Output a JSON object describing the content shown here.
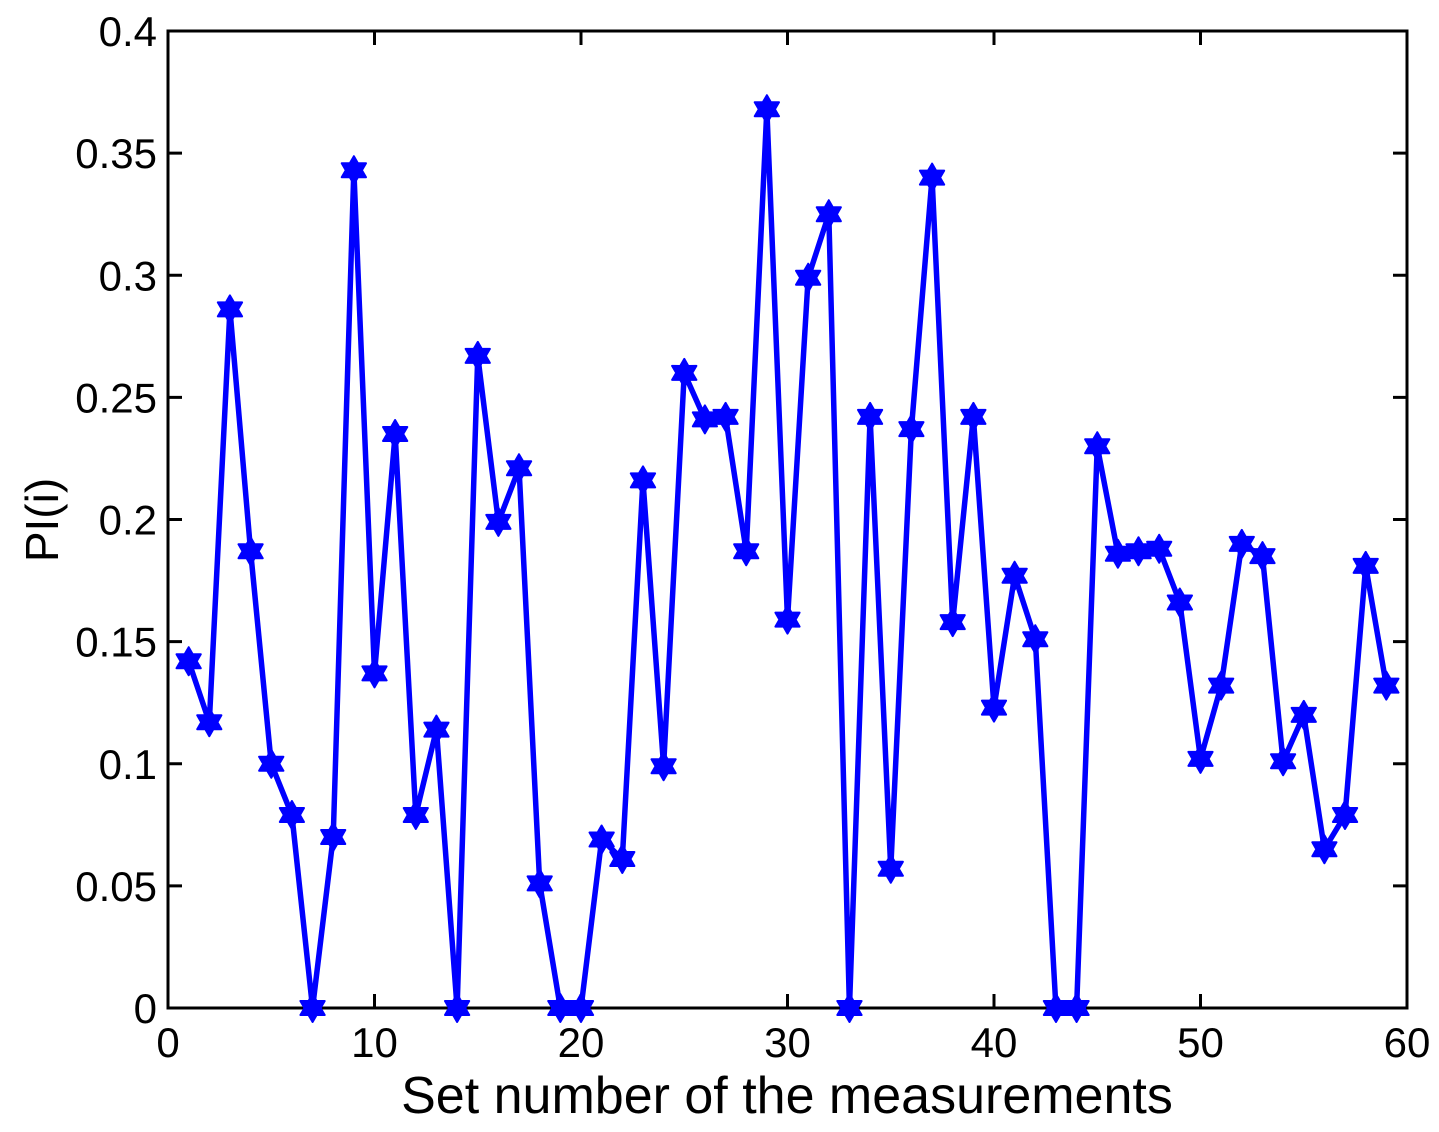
{
  "figure": {
    "background": "#ffffff"
  },
  "chart_data": {
    "type": "line",
    "title": "",
    "xlabel": "Set number of the measurements",
    "ylabel": "PI(i)",
    "grid": false,
    "legend_position": "none",
    "marker": "hexagram-star-icon",
    "line_color": "#0000ff",
    "axis_color": "#000000",
    "xlim": [
      0,
      60
    ],
    "ylim": [
      0,
      0.4
    ],
    "x_ticks": [
      0,
      10,
      20,
      30,
      40,
      50,
      60
    ],
    "x_tick_labels": [
      "0",
      "10",
      "20",
      "30",
      "40",
      "50",
      "60"
    ],
    "y_ticks": [
      0,
      0.05,
      0.1,
      0.15,
      0.2,
      0.25,
      0.3,
      0.35,
      0.4
    ],
    "y_tick_labels": [
      "0",
      "0.05",
      "0.1",
      "0.15",
      "0.2",
      "0.25",
      "0.3",
      "0.35",
      "0.4"
    ],
    "x": [
      1,
      2,
      3,
      4,
      5,
      6,
      7,
      8,
      9,
      10,
      11,
      12,
      13,
      14,
      15,
      16,
      17,
      18,
      19,
      20,
      21,
      22,
      23,
      24,
      25,
      26,
      27,
      28,
      29,
      30,
      31,
      32,
      33,
      34,
      35,
      36,
      37,
      38,
      39,
      40,
      41,
      42,
      43,
      44,
      45,
      46,
      47,
      48,
      49,
      50,
      51,
      52,
      53,
      54,
      55,
      56,
      57,
      58,
      59
    ],
    "y": [
      0.142,
      0.117,
      0.286,
      0.187,
      0.1,
      0.079,
      0.0,
      0.07,
      0.343,
      0.137,
      0.235,
      0.079,
      0.114,
      0.0,
      0.267,
      0.199,
      0.221,
      0.051,
      0.0,
      0.0,
      0.069,
      0.061,
      0.216,
      0.099,
      0.26,
      0.241,
      0.242,
      0.187,
      0.368,
      0.159,
      0.299,
      0.325,
      0.0,
      0.242,
      0.057,
      0.237,
      0.34,
      0.158,
      0.242,
      0.123,
      0.177,
      0.151,
      0.0,
      0.0,
      0.23,
      0.186,
      0.187,
      0.188,
      0.166,
      0.102,
      0.132,
      0.19,
      0.185,
      0.101,
      0.12,
      0.065,
      0.079,
      0.181,
      0.132
    ]
  }
}
